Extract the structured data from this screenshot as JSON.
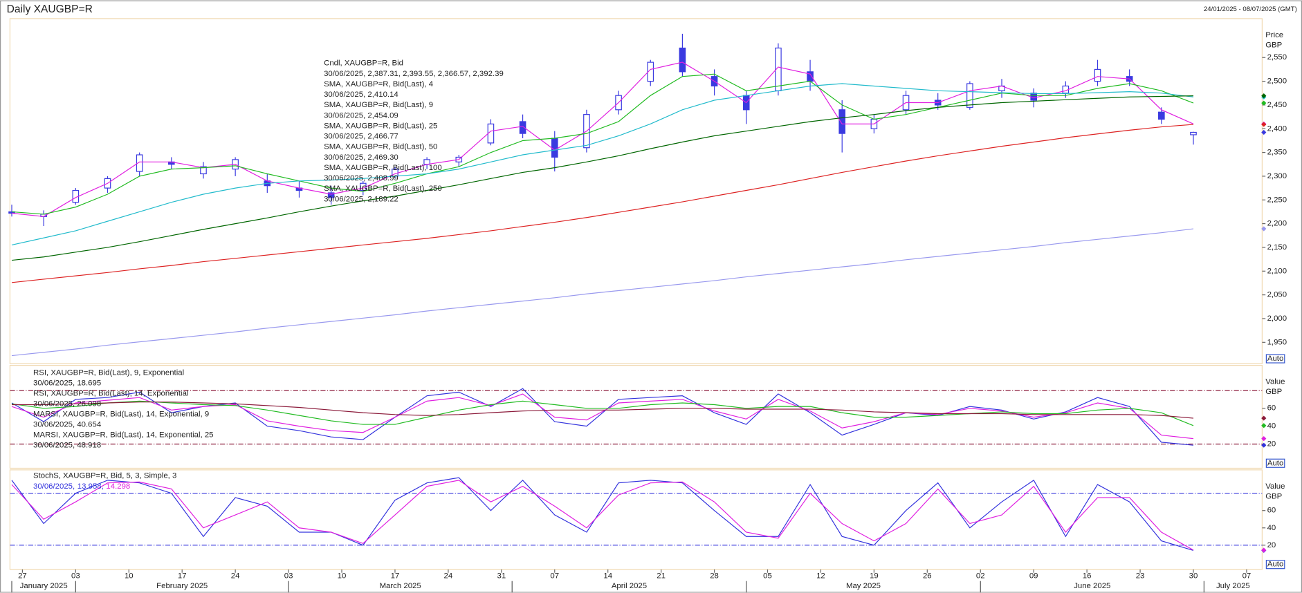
{
  "chart_data": [
    {
      "type": "candlestick",
      "title": "Daily XAUGBP=R",
      "subtitle": "24/01/2025 - 08/07/2025 (GMT)",
      "y_label": "Price",
      "y_unit": "GBP",
      "button": "Auto",
      "xlim": [
        -0.17,
        117.46
      ],
      "ylim": [
        1905,
        2632
      ],
      "yticks": [
        {
          "value": 1950,
          "label": "1,950"
        },
        {
          "value": 2000,
          "label": "2,000"
        },
        {
          "value": 2050,
          "label": "2,050"
        },
        {
          "value": 2100,
          "label": "2,100"
        },
        {
          "value": 2150,
          "label": "2,150"
        },
        {
          "value": 2200,
          "label": "2,200"
        },
        {
          "value": 2250,
          "label": "2,250"
        },
        {
          "value": 2300,
          "label": "2,300"
        },
        {
          "value": 2350,
          "label": "2,350"
        },
        {
          "value": 2400,
          "label": "2,400"
        },
        {
          "value": 2450,
          "label": "2,450"
        },
        {
          "value": 2500,
          "label": "2,500"
        },
        {
          "value": 2550,
          "label": "2,550"
        }
      ],
      "x": [
        0,
        3,
        6,
        9,
        12,
        15,
        18,
        21,
        24,
        27,
        30,
        33,
        36,
        39,
        42,
        45,
        48,
        51,
        54,
        57,
        60,
        63,
        66,
        69,
        72,
        75,
        78,
        81,
        84,
        87,
        90,
        93,
        96,
        99,
        102,
        105,
        108,
        111
      ],
      "candles": {
        "name": "Cndl, XAUGBP=R, Bid",
        "legend_value": "30/06/2025, 2,387.31, 2,393.55, 2,366.57, 2,392.39",
        "color": "#3a3ae0",
        "open": [
          2225,
          2215,
          2245,
          2275,
          2310,
          2330,
          2305,
          2315,
          2290,
          2275,
          2265,
          2270,
          2300,
          2325,
          2330,
          2370,
          2415,
          2380,
          2360,
          2440,
          2500,
          2570,
          2510,
          2470,
          2480,
          2520,
          2440,
          2400,
          2440,
          2460,
          2445,
          2480,
          2475,
          2475,
          2500,
          2510,
          2435,
          2387.31
        ],
        "high": [
          2240,
          2228,
          2275,
          2300,
          2350,
          2340,
          2330,
          2340,
          2305,
          2290,
          2280,
          2290,
          2320,
          2340,
          2345,
          2420,
          2430,
          2395,
          2440,
          2480,
          2545,
          2600,
          2525,
          2480,
          2580,
          2545,
          2460,
          2430,
          2480,
          2475,
          2500,
          2505,
          2485,
          2500,
          2545,
          2525,
          2445,
          2393.55
        ],
        "low": [
          2215,
          2195,
          2240,
          2265,
          2300,
          2315,
          2295,
          2300,
          2265,
          2255,
          2240,
          2260,
          2295,
          2315,
          2320,
          2365,
          2380,
          2310,
          2350,
          2430,
          2490,
          2510,
          2470,
          2410,
          2470,
          2480,
          2350,
          2390,
          2430,
          2440,
          2440,
          2465,
          2445,
          2465,
          2490,
          2490,
          2410,
          2366.57
        ],
        "close": [
          2222,
          2220,
          2270,
          2295,
          2345,
          2325,
          2320,
          2335,
          2280,
          2270,
          2255,
          2285,
          2315,
          2335,
          2340,
          2410,
          2390,
          2340,
          2430,
          2470,
          2540,
          2520,
          2490,
          2440,
          2570,
          2500,
          2390,
          2420,
          2470,
          2450,
          2495,
          2490,
          2460,
          2490,
          2525,
          2500,
          2420,
          2392.39
        ]
      },
      "series": [
        {
          "name": "SMA, XAUGBP=R, Bid(Last), 4",
          "legend_value": "30/06/2025, 2,410.14",
          "color": "#e020e0",
          "values": [
            2222,
            2215,
            2255,
            2285,
            2330,
            2330,
            2318,
            2325,
            2290,
            2275,
            2262,
            2275,
            2305,
            2325,
            2335,
            2395,
            2405,
            2355,
            2395,
            2455,
            2525,
            2540,
            2500,
            2455,
            2530,
            2515,
            2410,
            2410,
            2455,
            2455,
            2480,
            2490,
            2465,
            2480,
            2510,
            2505,
            2440,
            2410.14
          ]
        },
        {
          "name": "SMA, XAUGBP=R, Bid(Last), 9",
          "legend_value": "30/06/2025, 2,454.09",
          "color": "#22bb22",
          "values": [
            2225,
            2220,
            2235,
            2262,
            2300,
            2315,
            2318,
            2322,
            2305,
            2290,
            2275,
            2268,
            2285,
            2305,
            2320,
            2350,
            2375,
            2380,
            2390,
            2415,
            2470,
            2510,
            2515,
            2480,
            2490,
            2500,
            2450,
            2420,
            2430,
            2445,
            2460,
            2475,
            2470,
            2470,
            2485,
            2495,
            2480,
            2454.09
          ]
        },
        {
          "name": "SMA, XAUGBP=R, Bid(Last), 25",
          "legend_value": "30/06/2025, 2,466.77",
          "color": "#22bbcc",
          "values": [
            2155,
            2170,
            2185,
            2205,
            2225,
            2245,
            2262,
            2275,
            2285,
            2290,
            2292,
            2295,
            2300,
            2305,
            2315,
            2330,
            2345,
            2355,
            2365,
            2385,
            2410,
            2440,
            2460,
            2470,
            2480,
            2490,
            2495,
            2490,
            2485,
            2480,
            2478,
            2476,
            2474,
            2474,
            2476,
            2478,
            2475,
            2466.77
          ]
        },
        {
          "name": "SMA, XAUGBP=R, Bid(Last), 50",
          "legend_value": "30/06/2025, 2,469.30",
          "color": "#006600",
          "values": [
            2123,
            2130,
            2140,
            2150,
            2162,
            2175,
            2188,
            2200,
            2212,
            2225,
            2237,
            2248,
            2258,
            2270,
            2282,
            2295,
            2308,
            2318,
            2330,
            2343,
            2358,
            2372,
            2385,
            2395,
            2405,
            2415,
            2423,
            2430,
            2438,
            2445,
            2450,
            2455,
            2458,
            2461,
            2464,
            2467,
            2468,
            2469.3
          ]
        },
        {
          "name": "SMA, XAUGBP=R, Bid(Last), 100",
          "legend_value": "30/06/2025, 2,408.99",
          "color": "#dd2222",
          "values": [
            2076,
            2083,
            2090,
            2097,
            2105,
            2112,
            2120,
            2127,
            2134,
            2141,
            2148,
            2155,
            2162,
            2169,
            2177,
            2185,
            2194,
            2203,
            2213,
            2224,
            2235,
            2246,
            2258,
            2270,
            2282,
            2295,
            2308,
            2320,
            2332,
            2343,
            2353,
            2363,
            2372,
            2381,
            2389,
            2397,
            2404,
            2408.99
          ]
        },
        {
          "name": "SMA, XAUGBP=R, Bid(Last), 250",
          "legend_value": "30/06/2025, 2,189.22",
          "color": "#9999ee",
          "values": [
            1922,
            1929,
            1936,
            1944,
            1951,
            1958,
            1965,
            1972,
            1980,
            1987,
            1994,
            2001,
            2008,
            2016,
            2023,
            2030,
            2037,
            2044,
            2052,
            2059,
            2066,
            2073,
            2080,
            2088,
            2095,
            2102,
            2109,
            2116,
            2124,
            2131,
            2138,
            2145,
            2152,
            2160,
            2167,
            2174,
            2181,
            2189.22
          ]
        }
      ]
    },
    {
      "type": "line",
      "y_label": "Value",
      "y_unit": "GBP",
      "button": "Auto",
      "xlim": [
        -0.17,
        117.46
      ],
      "ylim": [
        -7,
        108
      ],
      "yticks": [
        20,
        40,
        60
      ],
      "levels": [
        20,
        80
      ],
      "level_color": "#8b1a3a",
      "x": [
        0,
        3,
        6,
        9,
        12,
        15,
        18,
        21,
        24,
        27,
        30,
        33,
        36,
        39,
        42,
        45,
        48,
        51,
        54,
        57,
        60,
        63,
        66,
        69,
        72,
        75,
        78,
        81,
        84,
        87,
        90,
        93,
        96,
        99,
        102,
        105,
        108,
        111
      ],
      "series": [
        {
          "name": "RSI, XAUGBP=R, Bid(Last), 9, Exponential",
          "legend_value": "30/06/2025, 18.695",
          "color": "#3333dd",
          "values": [
            66,
            45,
            70,
            72,
            78,
            55,
            62,
            66,
            40,
            35,
            28,
            25,
            50,
            74,
            78,
            62,
            82,
            45,
            40,
            70,
            72,
            74,
            55,
            42,
            76,
            55,
            30,
            42,
            55,
            52,
            62,
            58,
            48,
            56,
            72,
            62,
            22,
            18.695
          ]
        },
        {
          "name": "RSI, XAUGBP=R, Bid(Last), 14, Exponential",
          "legend_value": "30/06/2025, 26.098",
          "color": "#e020e0",
          "values": [
            62,
            50,
            66,
            69,
            72,
            58,
            62,
            64,
            46,
            40,
            35,
            33,
            50,
            68,
            72,
            63,
            76,
            50,
            47,
            66,
            68,
            70,
            57,
            48,
            70,
            57,
            38,
            45,
            55,
            53,
            60,
            57,
            50,
            55,
            66,
            60,
            30,
            26.098
          ]
        },
        {
          "name": "MARSI, XAUGBP=R, Bid(Last), 14, Exponential, 9",
          "legend_value": "30/06/2025, 40.654",
          "color": "#22bb22",
          "values": [
            65,
            60,
            62,
            66,
            68,
            66,
            64,
            63,
            58,
            52,
            46,
            42,
            42,
            50,
            58,
            64,
            68,
            64,
            60,
            60,
            64,
            66,
            64,
            60,
            62,
            62,
            55,
            50,
            50,
            52,
            54,
            56,
            54,
            54,
            58,
            60,
            55,
            40.654
          ]
        },
        {
          "name": "MARSI, XAUGBP=R, Bid(Last), 14, Exponential, 25",
          "legend_value": "30/06/2025, 48.918",
          "color": "#8b1a3a",
          "values": [
            64,
            64,
            65,
            66,
            67,
            67,
            66,
            65,
            63,
            61,
            58,
            55,
            53,
            52,
            53,
            55,
            57,
            58,
            58,
            58,
            59,
            60,
            60,
            59,
            59,
            59,
            58,
            56,
            55,
            54,
            54,
            54,
            53,
            53,
            53,
            53,
            52,
            48.918
          ]
        }
      ]
    },
    {
      "type": "line",
      "title": "StochS, XAUGBP=R, Bid, 5, 3, Simple, 3",
      "legend_date": "30/06/2025,",
      "y_label": "Value",
      "y_unit": "GBP",
      "button": "Auto",
      "xlim": [
        -0.17,
        117.46
      ],
      "ylim": [
        -8,
        107
      ],
      "yticks": [
        20,
        40,
        60
      ],
      "levels": [
        20,
        80
      ],
      "level_color": "#3333dd",
      "x": [
        0,
        3,
        6,
        9,
        12,
        15,
        18,
        21,
        24,
        27,
        30,
        33,
        36,
        39,
        42,
        45,
        48,
        51,
        54,
        57,
        60,
        63,
        66,
        69,
        72,
        75,
        78,
        81,
        84,
        87,
        90,
        93,
        96,
        99,
        102,
        105,
        108,
        111
      ],
      "xticks": [
        {
          "value": 1,
          "label": "27"
        },
        {
          "value": 6,
          "label": "03"
        },
        {
          "value": 11,
          "label": "10"
        },
        {
          "value": 16,
          "label": "17"
        },
        {
          "value": 21,
          "label": "24"
        },
        {
          "value": 26,
          "label": "03"
        },
        {
          "value": 31,
          "label": "10"
        },
        {
          "value": 36,
          "label": "17"
        },
        {
          "value": 41,
          "label": "24"
        },
        {
          "value": 46,
          "label": "31"
        },
        {
          "value": 51,
          "label": "07"
        },
        {
          "value": 56,
          "label": "14"
        },
        {
          "value": 61,
          "label": "21"
        },
        {
          "value": 66,
          "label": "28"
        },
        {
          "value": 71,
          "label": "05"
        },
        {
          "value": 76,
          "label": "12"
        },
        {
          "value": 81,
          "label": "19"
        },
        {
          "value": 86,
          "label": "26"
        },
        {
          "value": 91,
          "label": "02"
        },
        {
          "value": 96,
          "label": "09"
        },
        {
          "value": 101,
          "label": "16"
        },
        {
          "value": 106,
          "label": "23"
        },
        {
          "value": 111,
          "label": "30"
        },
        {
          "value": 116,
          "label": "07"
        }
      ],
      "months": [
        {
          "value": 0,
          "label": "January 2025"
        },
        {
          "value": 6,
          "label": "February 2025"
        },
        {
          "value": 26,
          "label": "March 2025"
        },
        {
          "value": 47,
          "label": "April 2025"
        },
        {
          "value": 69,
          "label": "May 2025"
        },
        {
          "value": 91,
          "label": "June 2025"
        },
        {
          "value": 112,
          "label": "July 2025"
        }
      ],
      "series": [
        {
          "legend_value": "13.958,",
          "color": "#3333dd",
          "values": [
            95,
            45,
            80,
            95,
            92,
            80,
            30,
            75,
            65,
            35,
            35,
            20,
            72,
            92,
            98,
            60,
            95,
            55,
            35,
            92,
            95,
            92,
            60,
            30,
            30,
            90,
            30,
            20,
            60,
            92,
            40,
            70,
            95,
            30,
            90,
            70,
            25,
            13.958
          ]
        },
        {
          "legend_value": "14.298",
          "color": "#e020e0",
          "values": [
            90,
            50,
            70,
            92,
            93,
            85,
            40,
            55,
            70,
            40,
            35,
            22,
            55,
            88,
            95,
            70,
            88,
            65,
            40,
            78,
            92,
            93,
            70,
            35,
            28,
            80,
            45,
            25,
            45,
            85,
            45,
            55,
            88,
            35,
            75,
            75,
            35,
            14.298
          ]
        }
      ]
    }
  ]
}
